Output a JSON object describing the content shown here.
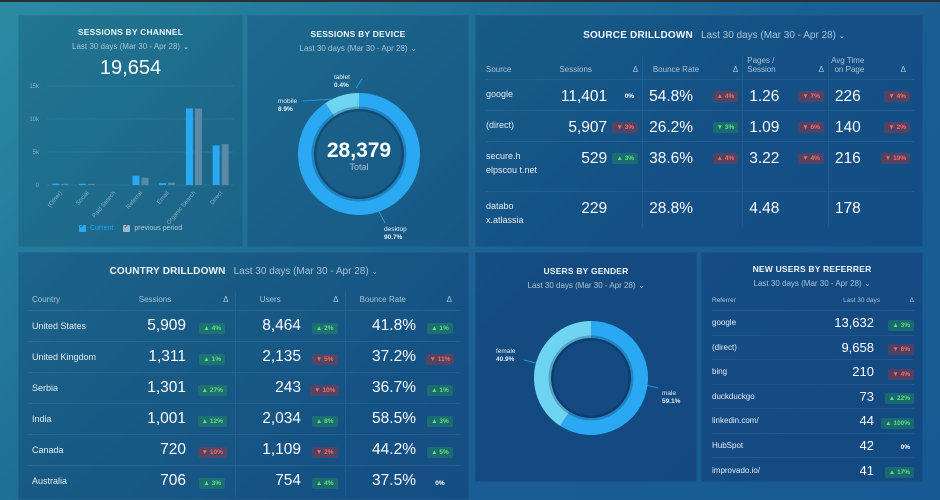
{
  "date_range": "Last 30 days (Mar 30 - Apr 28)",
  "colors": {
    "primary": "#2aa8f2",
    "secondary": "#6fd3f2",
    "previous": "#5a8aa6",
    "good": "#5fe07d",
    "bad": "#ff6a5c"
  },
  "sessions_by_channel": {
    "title": "SESSIONS BY CHANNEL",
    "date": "Last 30 days (Mar 30 - Apr 28)",
    "total": "19,654",
    "legend": {
      "current": "Current",
      "previous": "previous period"
    }
  },
  "sessions_by_device": {
    "title": "SESSIONS BY DEVICE",
    "date": "Last 30 days (Mar 30 - Apr 28)",
    "total": "28,379",
    "total_label": "Total"
  },
  "source_drilldown": {
    "title": "SOURCE DRILLDOWN",
    "date": "Last 30 days (Mar 30 - Apr 28)",
    "headers": [
      "Source",
      "Sessions",
      "Δ",
      "Bounce Rate",
      "Δ",
      "Pages / Session",
      "Δ",
      "Avg Time on Page",
      "Δ"
    ],
    "rows": [
      {
        "source": "google",
        "sessions": "11,401",
        "sessions_delta": {
          "text": "0%",
          "kind": "neutral"
        },
        "bounce": "54.8%",
        "bounce_delta": {
          "text": "▲ 4%",
          "kind": "up-bad"
        },
        "pages": "1.26",
        "pages_delta": {
          "text": "▼ 7%",
          "kind": "down-bad"
        },
        "time": "226",
        "time_delta": {
          "text": "▼ 4%",
          "kind": "down-bad"
        }
      },
      {
        "source": "(direct)",
        "sessions": "5,907",
        "sessions_delta": {
          "text": "▼ 3%",
          "kind": "down-bad"
        },
        "bounce": "26.2%",
        "bounce_delta": {
          "text": "▼ 3%",
          "kind": "down-good"
        },
        "pages": "1.09",
        "pages_delta": {
          "text": "▼ 6%",
          "kind": "down-bad"
        },
        "time": "140",
        "time_delta": {
          "text": "▼ 2%",
          "kind": "down-bad"
        }
      },
      {
        "source": "secure.h elpscou t.net",
        "sessions": "529",
        "sessions_delta": {
          "text": "▲ 3%",
          "kind": "up-good"
        },
        "bounce": "38.6%",
        "bounce_delta": {
          "text": "▲ 4%",
          "kind": "up-bad"
        },
        "pages": "3.22",
        "pages_delta": {
          "text": "▼ 4%",
          "kind": "down-bad"
        },
        "time": "216",
        "time_delta": {
          "text": "▼ 19%",
          "kind": "down-bad"
        }
      },
      {
        "source": "databo x.atlassia",
        "sessions": "229",
        "sessions_delta": {
          "text": "",
          "kind": "neutral"
        },
        "bounce": "28.8%",
        "bounce_delta": {
          "text": "",
          "kind": "neutral"
        },
        "pages": "4.48",
        "pages_delta": {
          "text": "",
          "kind": "neutral"
        },
        "time": "178",
        "time_delta": {
          "text": "",
          "kind": "neutral"
        }
      }
    ]
  },
  "country_drilldown": {
    "title": "COUNTRY DRILLDOWN",
    "date": "Last 30 days (Mar 30 - Apr 28)",
    "headers": [
      "Country",
      "Sessions",
      "Δ",
      "Users",
      "Δ",
      "Bounce Rate",
      "Δ"
    ],
    "rows": [
      {
        "country": "United States",
        "sessions": "5,909",
        "sessions_delta": {
          "text": "▲ 4%",
          "kind": "up-good"
        },
        "users": "8,464",
        "users_delta": {
          "text": "▲ 2%",
          "kind": "up-good"
        },
        "bounce": "41.8%",
        "bounce_delta": {
          "text": "▲ 1%",
          "kind": "up-good"
        }
      },
      {
        "country": "United Kingdom",
        "sessions": "1,311",
        "sessions_delta": {
          "text": "▲ 1%",
          "kind": "up-good"
        },
        "users": "2,135",
        "users_delta": {
          "text": "▼ 5%",
          "kind": "down-bad"
        },
        "bounce": "37.2%",
        "bounce_delta": {
          "text": "▼ 11%",
          "kind": "down-bad"
        }
      },
      {
        "country": "Serbia",
        "sessions": "1,301",
        "sessions_delta": {
          "text": "▲ 27%",
          "kind": "up-good"
        },
        "users": "243",
        "users_delta": {
          "text": "▼ 10%",
          "kind": "down-bad"
        },
        "bounce": "36.7%",
        "bounce_delta": {
          "text": "▲ 1%",
          "kind": "up-good"
        }
      },
      {
        "country": "India",
        "sessions": "1,001",
        "sessions_delta": {
          "text": "▲ 12%",
          "kind": "up-good"
        },
        "users": "2,034",
        "users_delta": {
          "text": "▲ 8%",
          "kind": "up-good"
        },
        "bounce": "58.5%",
        "bounce_delta": {
          "text": "▲ 3%",
          "kind": "up-good"
        }
      },
      {
        "country": "Canada",
        "sessions": "720",
        "sessions_delta": {
          "text": "▼ 10%",
          "kind": "down-bad"
        },
        "users": "1,109",
        "users_delta": {
          "text": "▼ 2%",
          "kind": "down-bad"
        },
        "bounce": "44.2%",
        "bounce_delta": {
          "text": "▲ 5%",
          "kind": "up-good"
        }
      },
      {
        "country": "Australia",
        "sessions": "706",
        "sessions_delta": {
          "text": "▲ 3%",
          "kind": "up-good"
        },
        "users": "754",
        "users_delta": {
          "text": "▲ 4%",
          "kind": "up-good"
        },
        "bounce": "37.5%",
        "bounce_delta": {
          "text": "0%",
          "kind": "neutral"
        }
      }
    ]
  },
  "users_by_gender": {
    "title": "USERS BY GENDER",
    "date": "Last 30 days (Mar 30 - Apr 28)"
  },
  "new_users_by_referrer": {
    "title": "NEW USERS BY REFERRER",
    "date": "Last 30 days (Mar 30 - Apr 28)",
    "headers": [
      "Referrer",
      "Last 30 days",
      "Δ"
    ],
    "rows": [
      {
        "referrer": "google",
        "value": "13,632",
        "delta": {
          "text": "▲ 3%",
          "kind": "up-good"
        }
      },
      {
        "referrer": "(direct)",
        "value": "9,658",
        "delta": {
          "text": "▼ 6%",
          "kind": "down-bad"
        }
      },
      {
        "referrer": "bing",
        "value": "210",
        "delta": {
          "text": "▼ 4%",
          "kind": "down-bad"
        }
      },
      {
        "referrer": "duckduckgo",
        "value": "73",
        "delta": {
          "text": "▲ 22%",
          "kind": "up-good"
        }
      },
      {
        "referrer": "linkedin.com/",
        "value": "44",
        "delta": {
          "text": "▲ 100%",
          "kind": "up-good"
        }
      },
      {
        "referrer": "HubSpot",
        "value": "42",
        "delta": {
          "text": "0%",
          "kind": "neutral"
        }
      },
      {
        "referrer": "improvado.io/",
        "value": "41",
        "delta": {
          "text": "▲ 17%",
          "kind": "up-good"
        }
      }
    ]
  },
  "chart_data": [
    {
      "id": "sessions_by_channel",
      "type": "bar",
      "title": "SESSIONS BY CHANNEL",
      "categories": [
        "(Other)",
        "Social",
        "Paid Search",
        "Referral",
        "Email",
        "Organic Search",
        "Direct"
      ],
      "series": [
        {
          "name": "Current",
          "values": [
            200,
            80,
            0,
            1400,
            300,
            11600,
            6000
          ]
        },
        {
          "name": "previous period",
          "values": [
            150,
            50,
            0,
            1100,
            350,
            11600,
            6200
          ]
        }
      ],
      "yticks": [
        "0",
        "5k",
        "10k",
        "15k"
      ],
      "ylim": [
        0,
        15000
      ],
      "grid": true,
      "legend": "bottom"
    },
    {
      "id": "sessions_by_device",
      "type": "pie",
      "title": "SESSIONS BY DEVICE",
      "slices": [
        {
          "label": "desktop",
          "value": 90.7,
          "display": "90.7%"
        },
        {
          "label": "mobile",
          "value": 8.9,
          "display": "8.9%"
        },
        {
          "label": "tablet",
          "value": 0.4,
          "display": "0.4%"
        }
      ],
      "center_value": "28,379",
      "center_label": "Total"
    },
    {
      "id": "users_by_gender",
      "type": "pie",
      "title": "USERS BY GENDER",
      "slices": [
        {
          "label": "male",
          "value": 59.1,
          "display": "59.1%"
        },
        {
          "label": "female",
          "value": 40.9,
          "display": "40.9%"
        }
      ]
    }
  ]
}
